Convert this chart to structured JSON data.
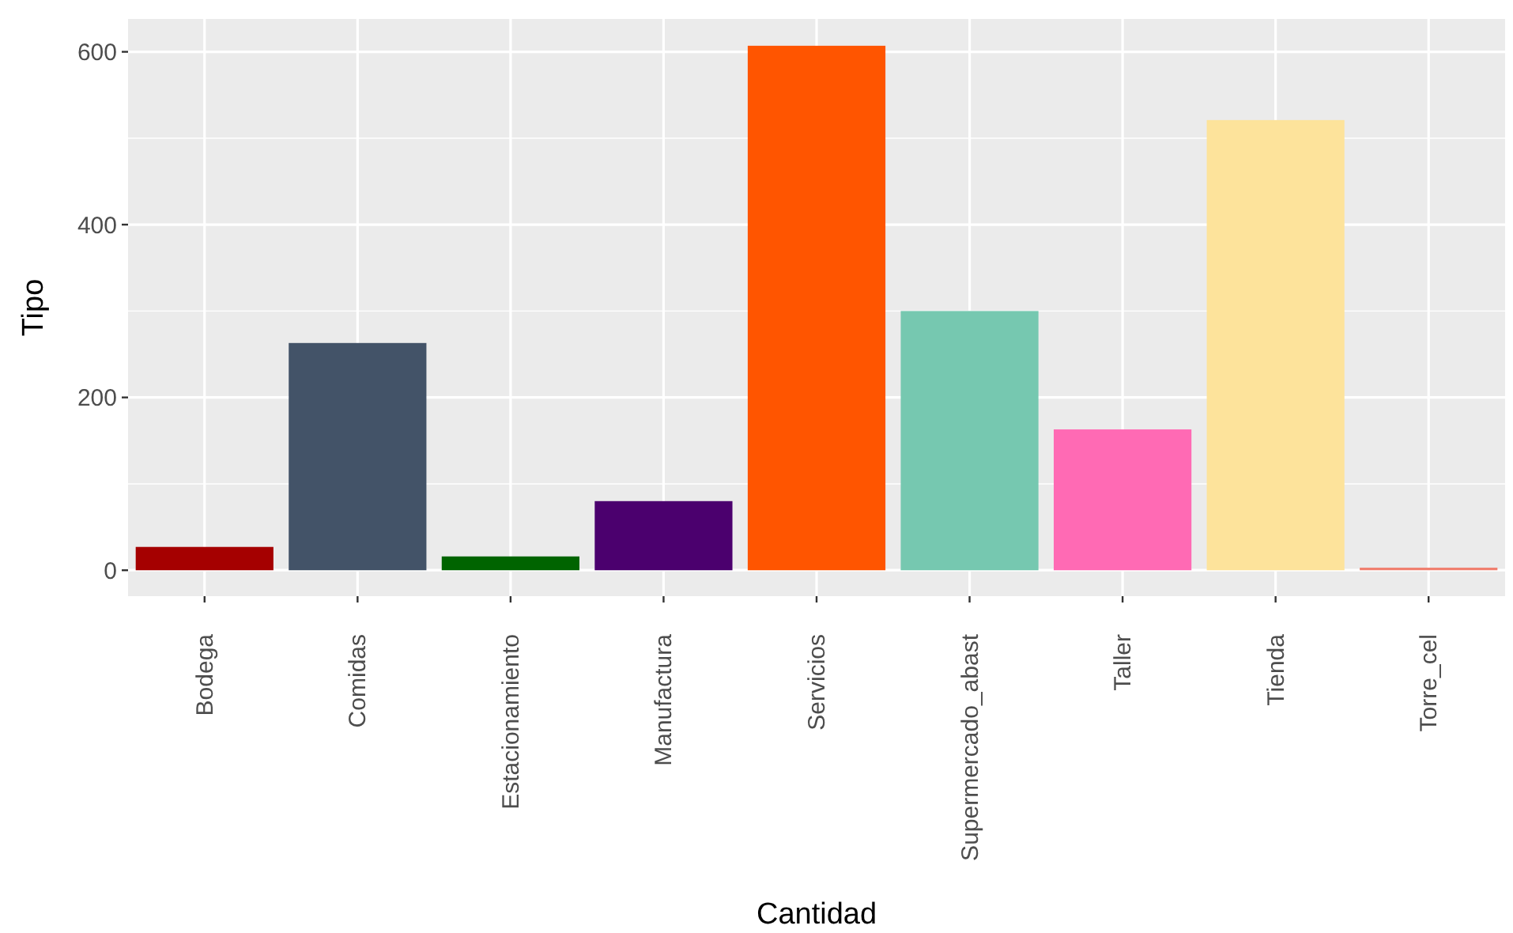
{
  "chart_data": {
    "type": "bar",
    "xlabel": "Cantidad",
    "ylabel": "Tipo",
    "categories": [
      "Bodega",
      "Comidas",
      "Estacionamiento",
      "Manufactura",
      "Servicios",
      "Supermercado_abast",
      "Taller",
      "Tienda",
      "Torre_cel"
    ],
    "values": [
      27,
      263,
      16,
      80,
      607,
      300,
      163,
      521,
      3
    ],
    "colors": [
      "#a50000",
      "#435368",
      "#006400",
      "#4b006e",
      "#ff5500",
      "#76c8b0",
      "#ff6ab4",
      "#fde39b",
      "#f08070"
    ],
    "ylim": [
      -30,
      638
    ],
    "yticks": [
      0,
      200,
      400,
      600
    ],
    "grid": true
  }
}
